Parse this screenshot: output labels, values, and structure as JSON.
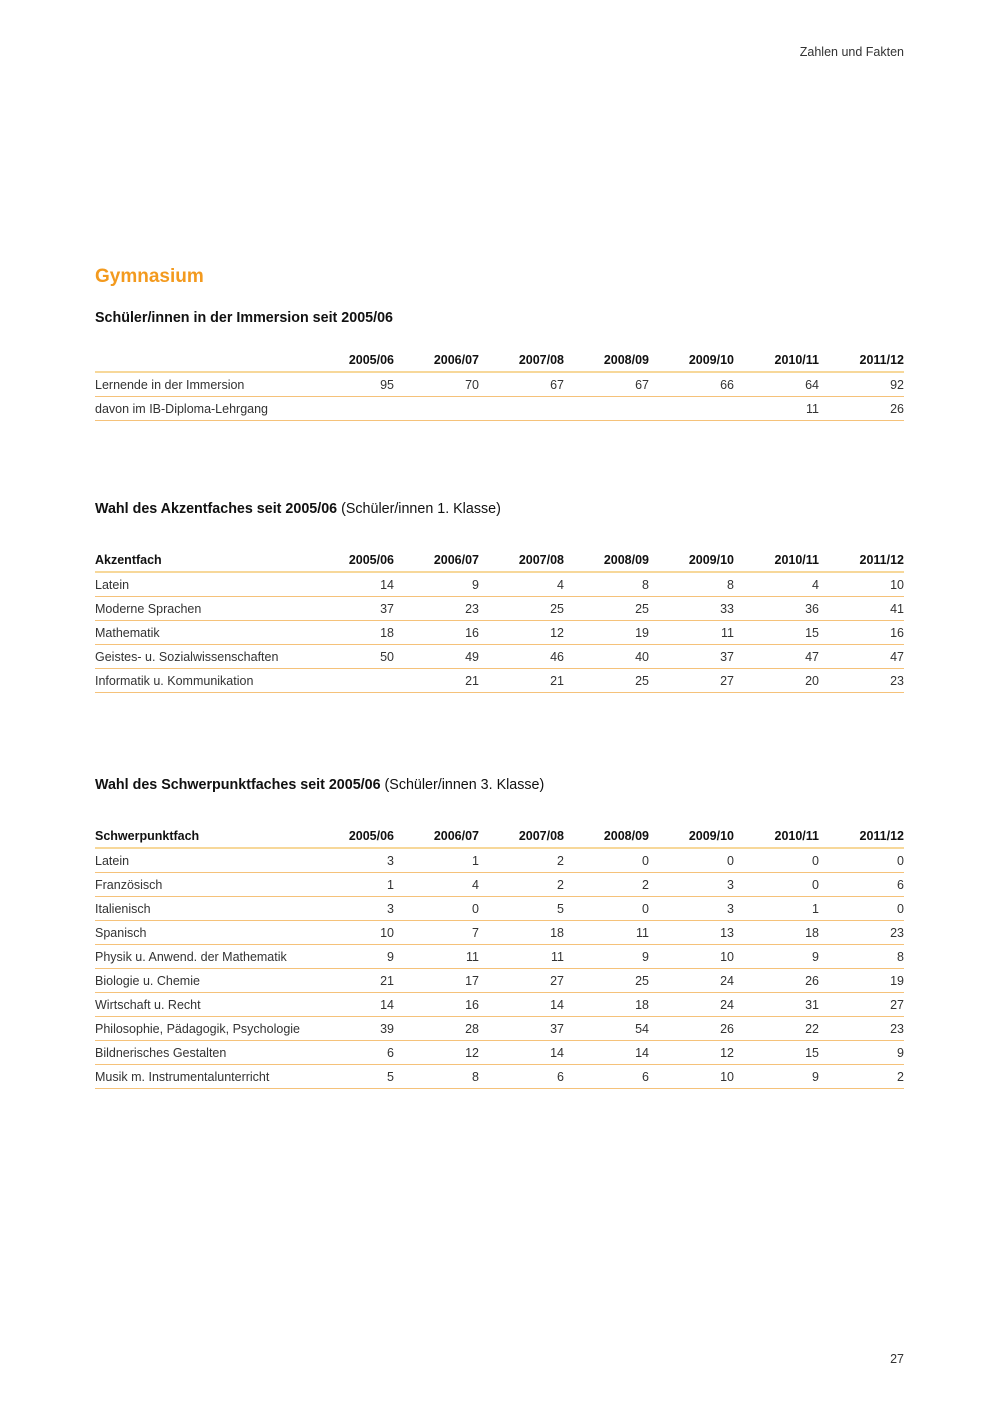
{
  "header": {
    "running_title": "Zahlen und Fakten"
  },
  "section_title": "Gymnasium",
  "years": [
    "2005/06",
    "2006/07",
    "2007/08",
    "2008/09",
    "2009/10",
    "2010/11",
    "2011/12"
  ],
  "tables": [
    {
      "title": "Schüler/innen in der Immersion seit 2005/06",
      "subtitle": "",
      "label_header": "",
      "rows": [
        {
          "label": "Lernende in der Immersion",
          "values": [
            "95",
            "70",
            "67",
            "67",
            "66",
            "64",
            "92"
          ]
        },
        {
          "label": "davon im IB-Diploma-Lehrgang",
          "values": [
            "",
            "",
            "",
            "",
            "",
            "11",
            "26"
          ]
        }
      ]
    },
    {
      "title": "Wahl des Akzentfaches seit 2005/06",
      "subtitle": "(Schüler/innen 1. Klasse)",
      "label_header": "Akzentfach",
      "rows": [
        {
          "label": "Latein",
          "values": [
            "14",
            "9",
            "4",
            "8",
            "8",
            "4",
            "10"
          ]
        },
        {
          "label": "Moderne Sprachen",
          "values": [
            "37",
            "23",
            "25",
            "25",
            "33",
            "36",
            "41"
          ]
        },
        {
          "label": "Mathematik",
          "values": [
            "18",
            "16",
            "12",
            "19",
            "11",
            "15",
            "16"
          ]
        },
        {
          "label": "Geistes- u. Sozialwissenschaften",
          "values": [
            "50",
            "49",
            "46",
            "40",
            "37",
            "47",
            "47"
          ]
        },
        {
          "label": "Informatik u. Kommunikation",
          "values": [
            "",
            "21",
            "21",
            "25",
            "27",
            "20",
            "23"
          ]
        }
      ]
    },
    {
      "title": "Wahl des Schwerpunktfaches seit 2005/06",
      "subtitle": "(Schüler/innen 3. Klasse)",
      "label_header": "Schwerpunktfach",
      "rows": [
        {
          "label": "Latein",
          "values": [
            "3",
            "1",
            "2",
            "0",
            "0",
            "0",
            "0"
          ]
        },
        {
          "label": "Französisch",
          "values": [
            "1",
            "4",
            "2",
            "2",
            "3",
            "0",
            "6"
          ]
        },
        {
          "label": "Italienisch",
          "values": [
            "3",
            "0",
            "5",
            "0",
            "3",
            "1",
            "0"
          ]
        },
        {
          "label": "Spanisch",
          "values": [
            "10",
            "7",
            "18",
            "11",
            "13",
            "18",
            "23"
          ]
        },
        {
          "label": "Physik u. Anwend. der Mathematik",
          "values": [
            "9",
            "11",
            "11",
            "9",
            "10",
            "9",
            "8"
          ]
        },
        {
          "label": "Biologie u. Chemie",
          "values": [
            "21",
            "17",
            "27",
            "25",
            "24",
            "26",
            "19"
          ]
        },
        {
          "label": "Wirtschaft u. Recht",
          "values": [
            "14",
            "16",
            "14",
            "18",
            "24",
            "31",
            "27"
          ]
        },
        {
          "label": "Philosophie, Pädagogik, Psychologie",
          "values": [
            "39",
            "28",
            "37",
            "54",
            "26",
            "22",
            "23"
          ]
        },
        {
          "label": "Bildnerisches Gestalten",
          "values": [
            "6",
            "12",
            "14",
            "14",
            "12",
            "15",
            "9"
          ]
        },
        {
          "label": "Musik m. Instrumentalunterricht",
          "values": [
            "5",
            "8",
            "6",
            "6",
            "10",
            "9",
            "2"
          ]
        }
      ]
    }
  ],
  "footer": {
    "page_number": "27"
  },
  "colors": {
    "accent": "#f39a1e",
    "rule": "#f5c27a"
  }
}
